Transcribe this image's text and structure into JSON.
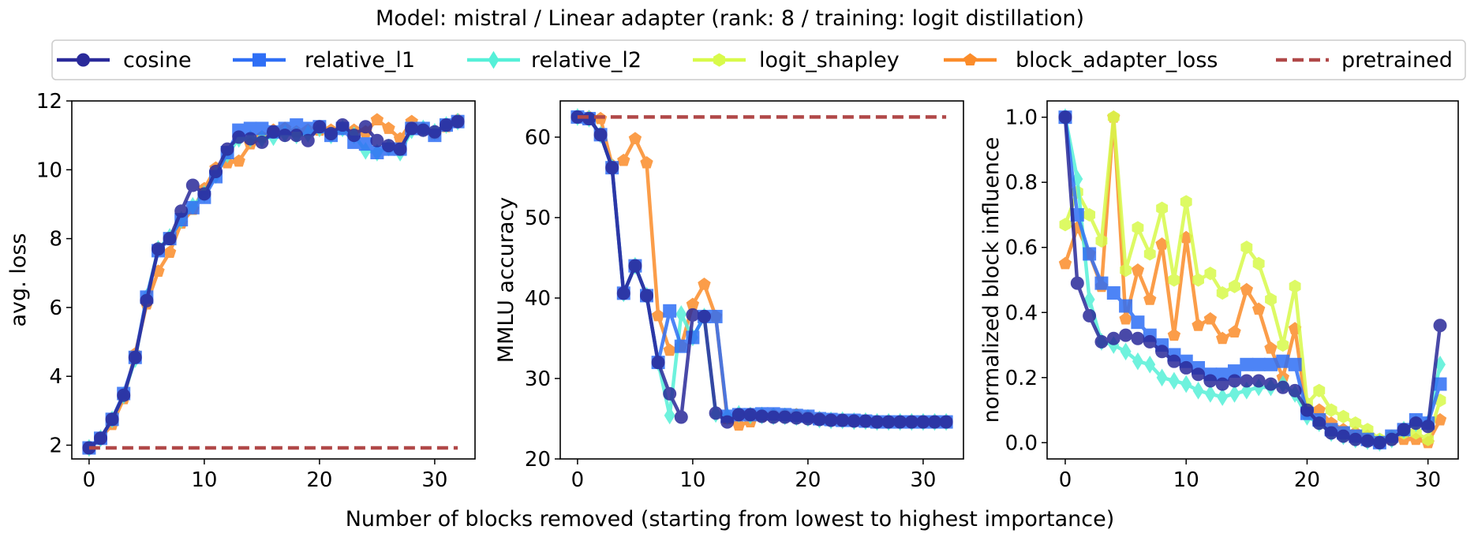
{
  "figure": {
    "suptitle": "Model: mistral / Linear adapter (rank: 8 / training: logit distillation)",
    "supxlabel": "Number of blocks removed (starting from lowest to highest importance)"
  },
  "legend": {
    "placement": "top-center",
    "entries": [
      {
        "label": "cosine",
        "color": "#2a2a9a",
        "marker": "circle",
        "style": "solid"
      },
      {
        "label": "relative_l1",
        "color": "#2f6ff5",
        "marker": "square",
        "style": "solid"
      },
      {
        "label": "relative_l2",
        "color": "#55f0d8",
        "marker": "diamond",
        "style": "solid"
      },
      {
        "label": "logit_shapley",
        "color": "#d8fa4a",
        "marker": "hexagon",
        "style": "solid"
      },
      {
        "label": "block_adapter_loss",
        "color": "#fb8c2a",
        "marker": "pentagon",
        "style": "solid"
      },
      {
        "label": "pretrained",
        "color": "#b04848",
        "marker": "none",
        "style": "dashed"
      }
    ]
  },
  "chart_data": [
    {
      "type": "line",
      "xlabel": "",
      "ylabel": "avg. loss",
      "xlim": [
        -1.5,
        33.5
      ],
      "ylim": [
        1.6,
        12
      ],
      "xticks": [
        0,
        10,
        20,
        30
      ],
      "yticks": [
        2,
        4,
        6,
        8,
        10,
        12
      ],
      "grid": false,
      "baseline": {
        "name": "pretrained",
        "value": 1.92
      },
      "series": [
        {
          "name": "cosine",
          "x": [
            0,
            1,
            2,
            3,
            4,
            5,
            6,
            7,
            8,
            9,
            10,
            11,
            12,
            13,
            14,
            15,
            16,
            17,
            18,
            19,
            20,
            21,
            22,
            23,
            24,
            25,
            26,
            27,
            28,
            29,
            30,
            31,
            32
          ],
          "values": [
            1.92,
            2.2,
            2.75,
            3.45,
            4.55,
            6.2,
            7.7,
            8.0,
            8.8,
            9.55,
            9.3,
            9.95,
            10.6,
            10.95,
            10.9,
            10.8,
            11.1,
            11.0,
            11.0,
            10.85,
            11.25,
            11.05,
            11.3,
            11.0,
            11.25,
            10.85,
            10.7,
            10.6,
            11.2,
            11.15,
            11.1,
            11.3,
            11.4
          ]
        },
        {
          "name": "relative_l1",
          "x": [
            0,
            1,
            2,
            3,
            4,
            5,
            6,
            7,
            8,
            9,
            10,
            11,
            12,
            13,
            14,
            15,
            16,
            17,
            18,
            19,
            20,
            21,
            22,
            23,
            24,
            25,
            26,
            27,
            28,
            29,
            30,
            31,
            32
          ],
          "values": [
            1.92,
            2.2,
            2.75,
            3.5,
            4.55,
            6.3,
            7.65,
            8.0,
            8.55,
            8.9,
            9.2,
            9.8,
            10.5,
            11.15,
            11.2,
            11.2,
            11.1,
            11.2,
            11.3,
            11.2,
            11.25,
            11.0,
            11.2,
            10.8,
            10.75,
            10.5,
            10.6,
            10.6,
            11.2,
            11.2,
            11.0,
            11.3,
            11.4
          ]
        },
        {
          "name": "relative_l2",
          "x": [
            0,
            1,
            2,
            3,
            4,
            5,
            6,
            7,
            8,
            9,
            10,
            11,
            12,
            13,
            14,
            15,
            16,
            17,
            18,
            19,
            20,
            21,
            22,
            23,
            24,
            25,
            26,
            27,
            28,
            29,
            30,
            31,
            32
          ],
          "values": [
            1.92,
            2.2,
            2.75,
            3.45,
            4.5,
            6.3,
            7.7,
            8.05,
            8.55,
            8.95,
            9.3,
            9.85,
            10.45,
            10.9,
            10.9,
            10.9,
            10.95,
            11.05,
            11.0,
            11.05,
            11.2,
            11.0,
            11.2,
            11.0,
            10.55,
            10.5,
            10.65,
            10.5,
            11.15,
            11.2,
            11.1,
            11.3,
            11.4
          ]
        },
        {
          "name": "block_adapter_loss",
          "x": [
            0,
            1,
            2,
            3,
            4,
            5,
            6,
            7,
            8,
            9,
            10,
            11,
            12,
            13,
            14,
            15,
            16,
            17,
            18,
            19,
            20,
            21,
            22,
            23,
            24,
            25,
            26,
            27,
            28,
            29,
            30,
            31,
            32
          ],
          "values": [
            1.92,
            2.2,
            2.6,
            3.35,
            4.65,
            6.1,
            7.05,
            7.6,
            8.45,
            8.85,
            9.45,
            10.05,
            10.2,
            10.25,
            10.75,
            10.95,
            11.15,
            11.2,
            11.1,
            11.15,
            11.15,
            11.15,
            11.2,
            11.15,
            11.1,
            11.45,
            11.2,
            10.9,
            11.4,
            11.2,
            11.05,
            11.25,
            11.45
          ]
        }
      ]
    },
    {
      "type": "line",
      "xlabel": "",
      "ylabel": "MMLU accuracy",
      "xlim": [
        -1.5,
        33.5
      ],
      "ylim": [
        20,
        64.5
      ],
      "xticks": [
        0,
        10,
        20,
        30
      ],
      "yticks": [
        20,
        30,
        40,
        50,
        60
      ],
      "grid": false,
      "baseline": {
        "name": "pretrained",
        "value": 62.5
      },
      "series": [
        {
          "name": "cosine",
          "x": [
            0,
            1,
            2,
            3,
            4,
            5,
            6,
            7,
            8,
            9,
            10,
            11,
            12,
            13,
            14,
            15,
            16,
            17,
            18,
            19,
            20,
            21,
            22,
            23,
            24,
            25,
            26,
            27,
            28,
            29,
            30,
            31,
            32
          ],
          "values": [
            62.5,
            62.3,
            60.3,
            56.2,
            40.6,
            44.0,
            40.3,
            32.0,
            28.1,
            25.2,
            37.9,
            37.7,
            25.7,
            24.6,
            25.5,
            25.5,
            25.3,
            25.2,
            25.2,
            25.1,
            25.0,
            24.9,
            24.8,
            24.8,
            24.7,
            24.7,
            24.6,
            24.6,
            24.6,
            24.6,
            24.6,
            24.6,
            24.6
          ]
        },
        {
          "name": "relative_l1",
          "x": [
            0,
            1,
            2,
            3,
            4,
            5,
            6,
            7,
            8,
            9,
            10,
            11,
            12,
            13,
            14,
            15,
            16,
            17,
            18,
            19,
            20,
            21,
            22,
            23,
            24,
            25,
            26,
            27,
            28,
            29,
            30,
            31,
            32
          ],
          "values": [
            62.5,
            62.3,
            60.3,
            56.2,
            40.6,
            44.0,
            40.3,
            32.0,
            38.4,
            34.0,
            35.1,
            37.7,
            37.7,
            25.3,
            25.5,
            25.5,
            25.6,
            25.6,
            25.5,
            25.4,
            25.3,
            25.0,
            24.9,
            24.8,
            24.8,
            24.7,
            24.6,
            24.6,
            24.6,
            24.6,
            24.6,
            24.6,
            24.6
          ]
        },
        {
          "name": "relative_l2",
          "x": [
            0,
            1,
            2,
            3,
            4,
            5,
            6,
            7,
            8,
            9,
            10,
            11,
            12,
            13,
            14,
            15,
            16,
            17,
            18,
            19,
            20,
            21,
            22,
            23,
            24,
            25,
            26,
            27,
            28,
            29,
            30,
            31,
            32
          ],
          "values": [
            62.5,
            62.3,
            60.3,
            56.2,
            40.6,
            44.0,
            40.3,
            32.0,
            25.4,
            38.0,
            35.1,
            37.7,
            25.6,
            25.3,
            25.6,
            25.4,
            25.4,
            25.3,
            25.3,
            25.2,
            25.1,
            24.9,
            24.8,
            24.8,
            24.7,
            24.7,
            24.6,
            24.6,
            24.6,
            24.6,
            24.6,
            24.6,
            24.6
          ]
        },
        {
          "name": "block_adapter_loss",
          "x": [
            0,
            1,
            2,
            3,
            4,
            5,
            6,
            7,
            8,
            9,
            10,
            11,
            12,
            13,
            14,
            15,
            16,
            17,
            18,
            19,
            20,
            21,
            22,
            23,
            24,
            25,
            26,
            27,
            28,
            29,
            30,
            31,
            32
          ],
          "values": [
            62.5,
            62.5,
            62.3,
            56.5,
            57.1,
            59.8,
            56.8,
            37.8,
            33.5,
            34.0,
            39.2,
            41.7,
            37.7,
            25.0,
            24.2,
            24.6,
            25.3,
            25.5,
            25.5,
            25.5,
            25.3,
            25.1,
            24.9,
            24.8,
            24.8,
            24.8,
            24.7,
            24.7,
            24.7,
            24.7,
            24.7,
            24.7,
            24.7
          ]
        }
      ]
    },
    {
      "type": "line",
      "xlabel": "",
      "ylabel": "normalized block influence",
      "xlim": [
        -1.5,
        32.5
      ],
      "ylim": [
        -0.05,
        1.05
      ],
      "xticks": [
        0,
        10,
        20,
        30
      ],
      "yticks": [
        0.0,
        0.2,
        0.4,
        0.6,
        0.8,
        1.0
      ],
      "grid": false,
      "series": [
        {
          "name": "cosine",
          "x": [
            0,
            1,
            2,
            3,
            4,
            5,
            6,
            7,
            8,
            9,
            10,
            11,
            12,
            13,
            14,
            15,
            16,
            17,
            18,
            19,
            20,
            21,
            22,
            23,
            24,
            25,
            26,
            27,
            28,
            29,
            30,
            31
          ],
          "values": [
            1.0,
            0.49,
            0.39,
            0.31,
            0.32,
            0.33,
            0.32,
            0.31,
            0.28,
            0.25,
            0.23,
            0.21,
            0.19,
            0.18,
            0.19,
            0.19,
            0.19,
            0.18,
            0.17,
            0.16,
            0.1,
            0.06,
            0.03,
            0.02,
            0.01,
            0.005,
            0.0,
            0.01,
            0.04,
            0.06,
            0.05,
            0.36
          ]
        },
        {
          "name": "relative_l1",
          "x": [
            0,
            1,
            2,
            3,
            4,
            5,
            6,
            7,
            8,
            9,
            10,
            11,
            12,
            13,
            14,
            15,
            16,
            17,
            18,
            19,
            20,
            21,
            22,
            23,
            24,
            25,
            26,
            27,
            28,
            29,
            30,
            31
          ],
          "values": [
            1.0,
            0.7,
            0.58,
            0.49,
            0.46,
            0.42,
            0.37,
            0.33,
            0.3,
            0.27,
            0.25,
            0.23,
            0.21,
            0.21,
            0.22,
            0.24,
            0.24,
            0.24,
            0.25,
            0.24,
            0.09,
            0.07,
            0.04,
            0.03,
            0.02,
            0.01,
            0.0,
            0.02,
            0.04,
            0.07,
            0.06,
            0.18
          ]
        },
        {
          "name": "relative_l2",
          "x": [
            0,
            1,
            2,
            3,
            4,
            5,
            6,
            7,
            8,
            9,
            10,
            11,
            12,
            13,
            14,
            15,
            16,
            17,
            18,
            19,
            20,
            21,
            22,
            23,
            24,
            25,
            26,
            27,
            28,
            29,
            30,
            31
          ],
          "values": [
            1.0,
            0.81,
            0.44,
            0.31,
            0.3,
            0.28,
            0.25,
            0.24,
            0.2,
            0.19,
            0.18,
            0.16,
            0.15,
            0.14,
            0.15,
            0.16,
            0.17,
            0.17,
            0.18,
            0.15,
            0.08,
            0.06,
            0.03,
            0.02,
            0.01,
            0.005,
            0.0,
            0.01,
            0.04,
            0.06,
            0.06,
            0.24
          ]
        },
        {
          "name": "logit_shapley",
          "x": [
            0,
            1,
            2,
            3,
            4,
            5,
            6,
            7,
            8,
            9,
            10,
            11,
            12,
            13,
            14,
            15,
            16,
            17,
            18,
            19,
            20,
            21,
            22,
            23,
            24,
            25,
            26,
            27,
            28,
            29,
            30,
            31
          ],
          "values": [
            0.67,
            0.77,
            0.7,
            0.62,
            1.0,
            0.53,
            0.66,
            0.58,
            0.72,
            0.5,
            0.74,
            0.5,
            0.52,
            0.46,
            0.48,
            0.6,
            0.55,
            0.44,
            0.3,
            0.48,
            0.12,
            0.16,
            0.1,
            0.08,
            0.06,
            0.04,
            0.01,
            0.02,
            0.03,
            0.03,
            0.01,
            0.13
          ]
        },
        {
          "name": "block_adapter_loss",
          "x": [
            0,
            1,
            2,
            3,
            4,
            5,
            6,
            7,
            8,
            9,
            10,
            11,
            12,
            13,
            14,
            15,
            16,
            17,
            18,
            19,
            20,
            21,
            22,
            23,
            24,
            25,
            26,
            27,
            28,
            29,
            30,
            31
          ],
          "values": [
            0.55,
            0.66,
            0.58,
            0.48,
            1.0,
            0.38,
            0.53,
            0.44,
            0.61,
            0.33,
            0.63,
            0.36,
            0.38,
            0.32,
            0.34,
            0.47,
            0.41,
            0.29,
            0.2,
            0.35,
            0.09,
            0.1,
            0.06,
            0.04,
            0.03,
            0.02,
            0.005,
            0.01,
            0.01,
            0.01,
            0.0,
            0.07
          ]
        }
      ]
    }
  ]
}
